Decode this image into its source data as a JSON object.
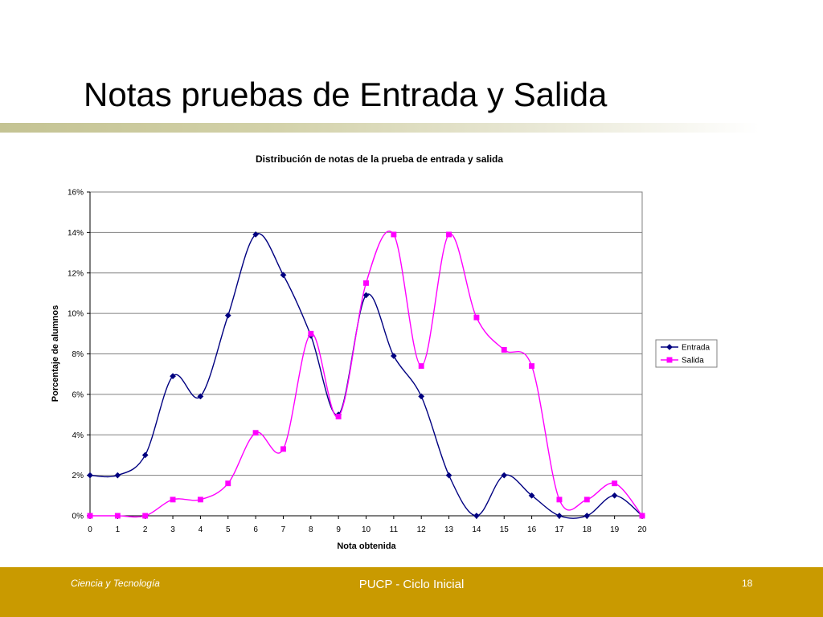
{
  "slide": {
    "title": "Notas pruebas de Entrada y Salida"
  },
  "footer": {
    "left": "Ciencia y Tecnología",
    "center": "PUCP - Ciclo Inicial",
    "page_number": "18"
  },
  "colors": {
    "footer_bar": "#c99a00",
    "entrada": "#000080",
    "salida": "#ff00ff"
  },
  "chart_data": {
    "type": "line",
    "title": "Distribución de notas de la prueba de entrada y salida",
    "xlabel": "Nota obtenida",
    "ylabel": "Porcentaje de alumnos",
    "x": [
      0,
      1,
      2,
      3,
      4,
      5,
      6,
      7,
      8,
      9,
      10,
      11,
      12,
      13,
      14,
      15,
      16,
      17,
      18,
      19,
      20
    ],
    "x_tick_labels": [
      "0",
      "1",
      "2",
      "3",
      "4",
      "5",
      "6",
      "7",
      "8",
      "9",
      "10",
      "11",
      "12",
      "13",
      "14",
      "15",
      "16",
      "17",
      "18",
      "19",
      "20"
    ],
    "ylim": [
      0,
      16
    ],
    "y_ticks": [
      0,
      2,
      4,
      6,
      8,
      10,
      12,
      14,
      16
    ],
    "y_tick_labels": [
      "0%",
      "2%",
      "4%",
      "6%",
      "8%",
      "10%",
      "12%",
      "14%",
      "16%"
    ],
    "smoothed": true,
    "grid": "horizontal",
    "legend_position": "right",
    "series": [
      {
        "name": "Entrada",
        "marker": "diamond",
        "color": "#000080",
        "values": [
          2.0,
          2.0,
          3.0,
          6.9,
          5.9,
          9.9,
          13.9,
          11.9,
          8.9,
          5.0,
          10.9,
          7.9,
          5.9,
          2.0,
          0.0,
          2.0,
          1.0,
          0.0,
          0.0,
          1.0,
          0.0
        ]
      },
      {
        "name": "Salida",
        "marker": "square",
        "color": "#ff00ff",
        "values": [
          0.0,
          0.0,
          0.0,
          0.8,
          0.8,
          1.6,
          4.1,
          3.3,
          9.0,
          4.9,
          11.5,
          13.9,
          7.4,
          13.9,
          9.8,
          8.2,
          7.4,
          0.8,
          0.8,
          1.6,
          0.0
        ]
      }
    ]
  }
}
